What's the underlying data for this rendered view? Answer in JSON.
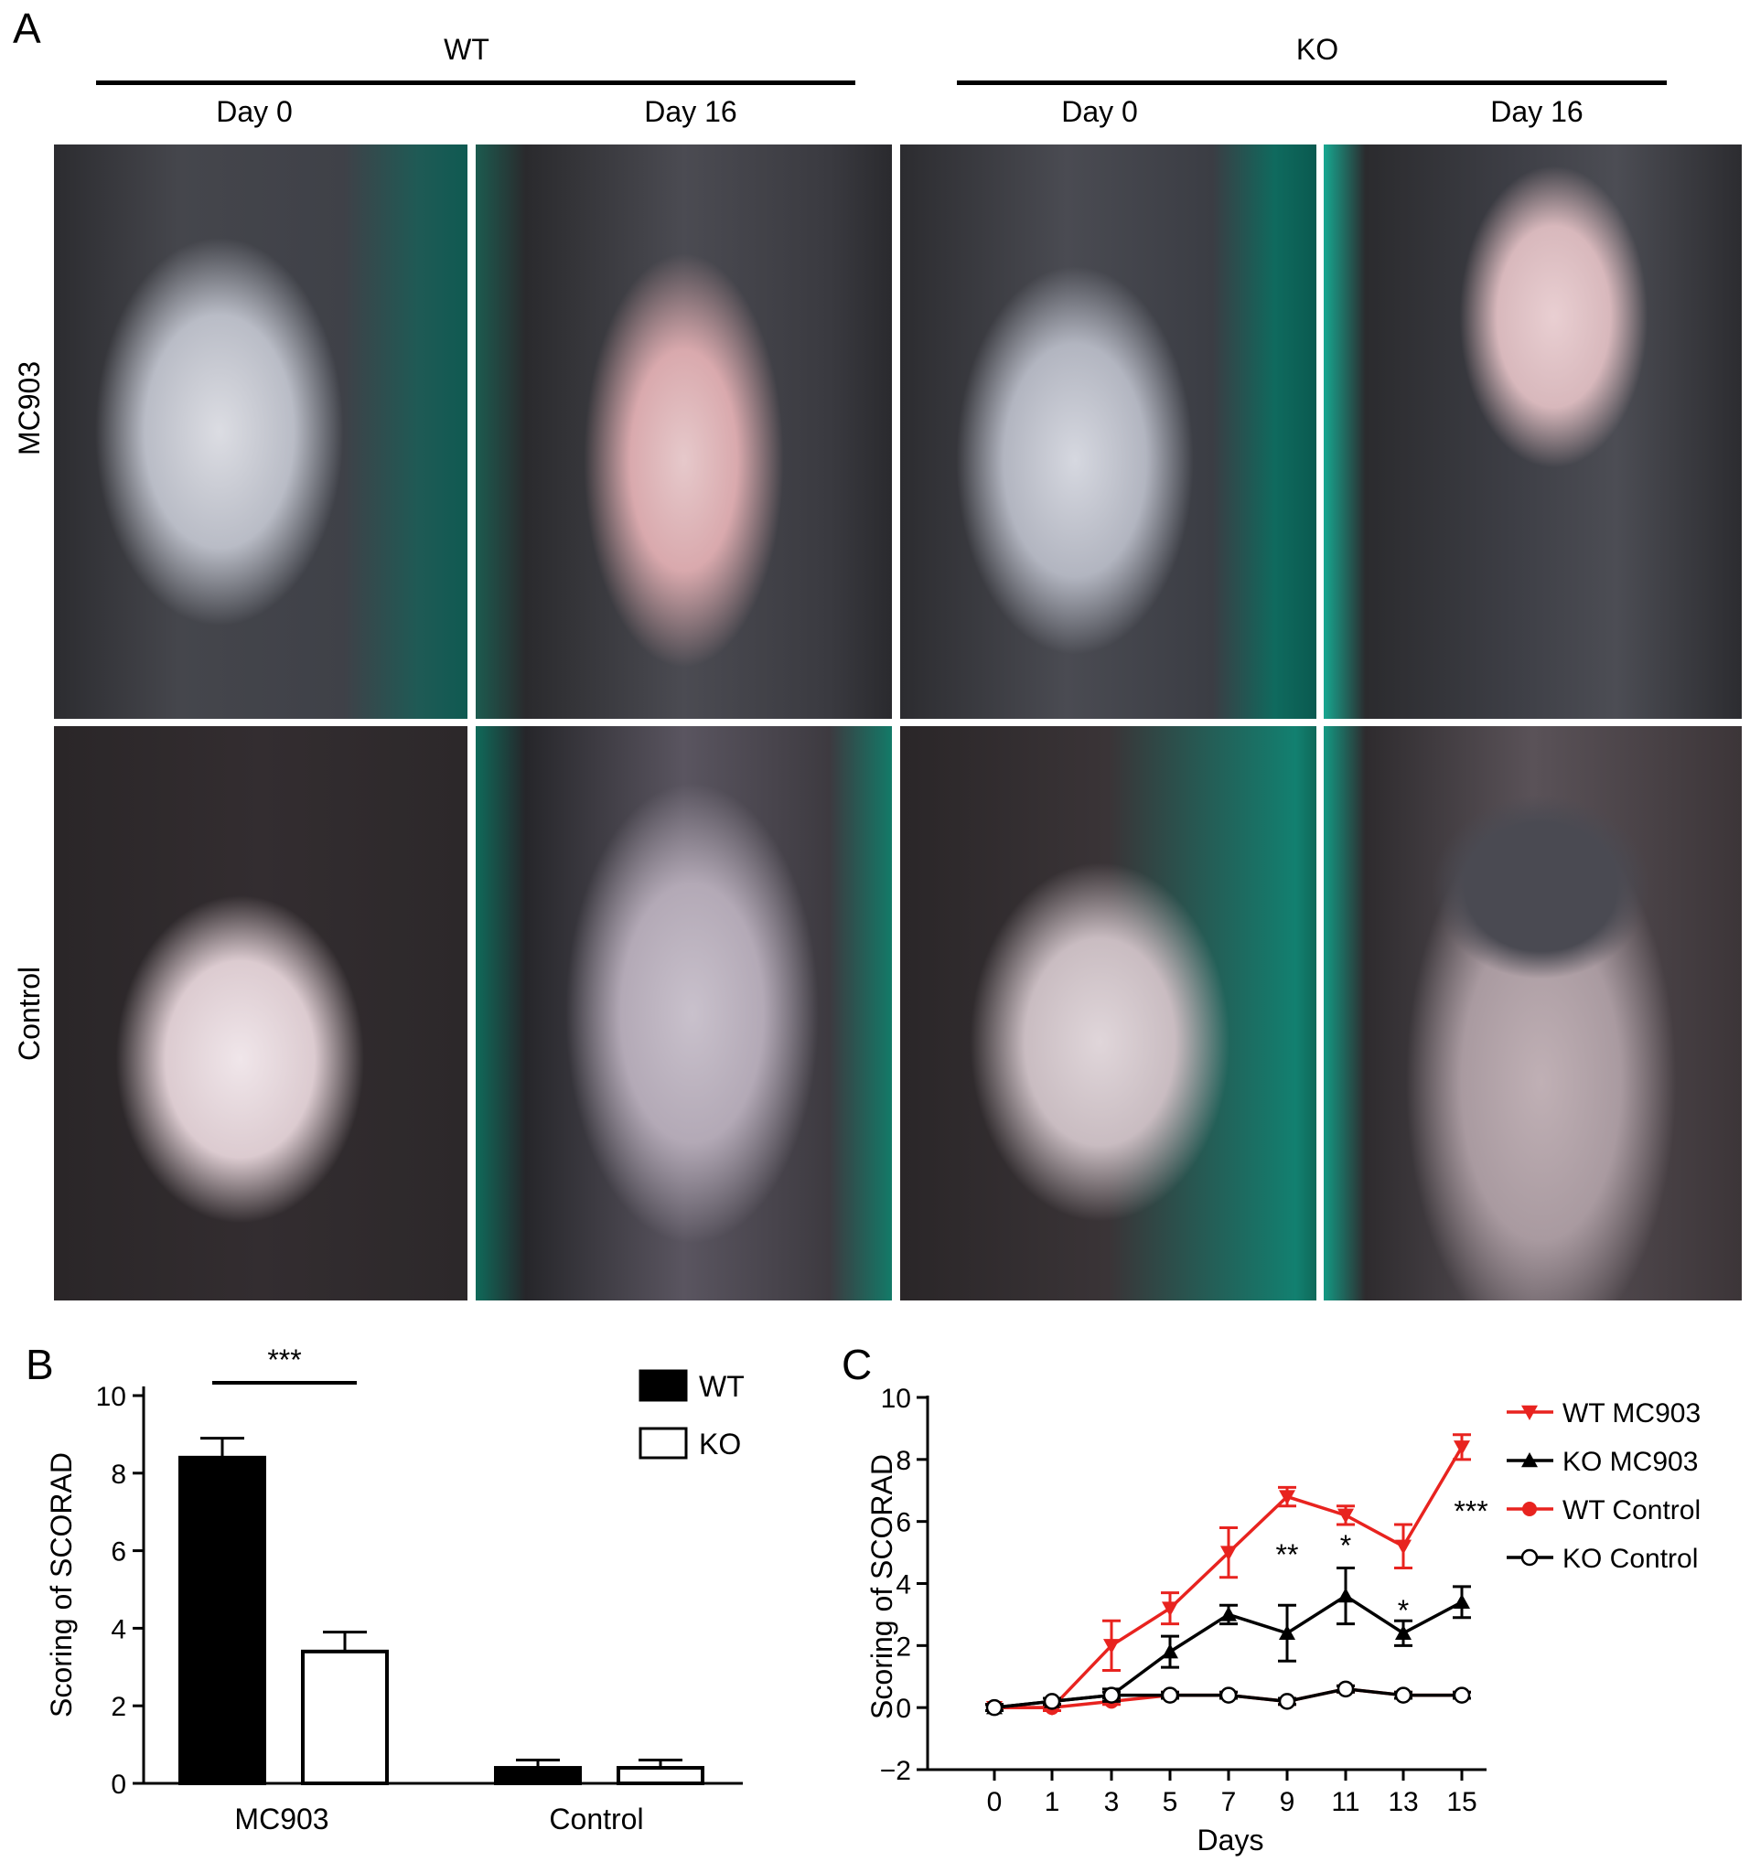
{
  "panel_a": {
    "letter": "A",
    "groups": [
      {
        "label": "WT",
        "days": [
          "Day 0",
          "Day 16"
        ]
      },
      {
        "label": "KO",
        "days": [
          "Day 0",
          "Day 16"
        ]
      }
    ],
    "rows": [
      "MC903",
      "Control"
    ]
  },
  "chart_data": [
    {
      "panel": "B",
      "type": "bar",
      "categories": [
        "MC903",
        "Control"
      ],
      "series": [
        {
          "name": "WT",
          "values": [
            8.4,
            0.4
          ],
          "errors": [
            0.5,
            0.2
          ],
          "fill": "#000000"
        },
        {
          "name": "KO",
          "values": [
            3.4,
            0.4
          ],
          "errors": [
            0.5,
            0.2
          ],
          "fill": "#ffffff"
        }
      ],
      "ylabel": "Scoring of SCORAD",
      "ylim": [
        0,
        10
      ],
      "yticks": [
        0,
        2,
        4,
        6,
        8,
        10
      ],
      "annotations": [
        {
          "text": "***",
          "category": "MC903"
        }
      ],
      "legend": "top-right"
    },
    {
      "panel": "C",
      "type": "line",
      "x": [
        0,
        1,
        3,
        5,
        7,
        9,
        11,
        13,
        15
      ],
      "xticks": [
        "0",
        "1",
        "3",
        "5",
        "7",
        "9",
        "11",
        "13",
        "15"
      ],
      "xlabel": "Days",
      "ylabel": "Scoring of SCORAD",
      "ylim": [
        -2,
        10
      ],
      "yticks": [
        "−2",
        "0",
        "2",
        "4",
        "6",
        "8",
        "10"
      ],
      "yticks_values": [
        -2,
        0,
        2,
        4,
        6,
        8,
        10
      ],
      "series": [
        {
          "name": "WT MC903",
          "color": "#e8231f",
          "marker": "triangle-down",
          "values": [
            0,
            0,
            2.0,
            3.2,
            5.0,
            6.8,
            6.2,
            5.2,
            8.4
          ],
          "errors": [
            0.1,
            0.1,
            0.8,
            0.5,
            0.8,
            0.3,
            0.3,
            0.7,
            0.4
          ]
        },
        {
          "name": "KO MC903",
          "color": "#000000",
          "marker": "triangle-up",
          "values": [
            0,
            0.2,
            0.4,
            1.8,
            3.0,
            2.4,
            3.6,
            2.4,
            3.4
          ],
          "errors": [
            0.1,
            0.1,
            0.2,
            0.5,
            0.3,
            0.9,
            0.9,
            0.4,
            0.5
          ]
        },
        {
          "name": "WT Control",
          "color": "#e8231f",
          "marker": "circle-filled",
          "values": [
            0,
            0,
            0.2,
            0.4,
            0.4,
            0.2,
            0.6,
            0.4,
            0.4
          ],
          "errors": [
            0.1,
            0.1,
            0.1,
            0.1,
            0.1,
            0.1,
            0.1,
            0.1,
            0.1
          ]
        },
        {
          "name": "KO Control",
          "color": "#000000",
          "marker": "circle-open",
          "values": [
            0,
            0.2,
            0.4,
            0.4,
            0.4,
            0.2,
            0.6,
            0.4,
            0.4
          ],
          "errors": [
            0.1,
            0.1,
            0.1,
            0.1,
            0.1,
            0.1,
            0.1,
            0.1,
            0.1
          ]
        }
      ],
      "annotations": [
        {
          "text": "**",
          "x": 9
        },
        {
          "text": "*",
          "x": 11
        },
        {
          "text": "*",
          "x": 13
        },
        {
          "text": "***",
          "x": 15
        }
      ],
      "legend": "top-right"
    }
  ]
}
